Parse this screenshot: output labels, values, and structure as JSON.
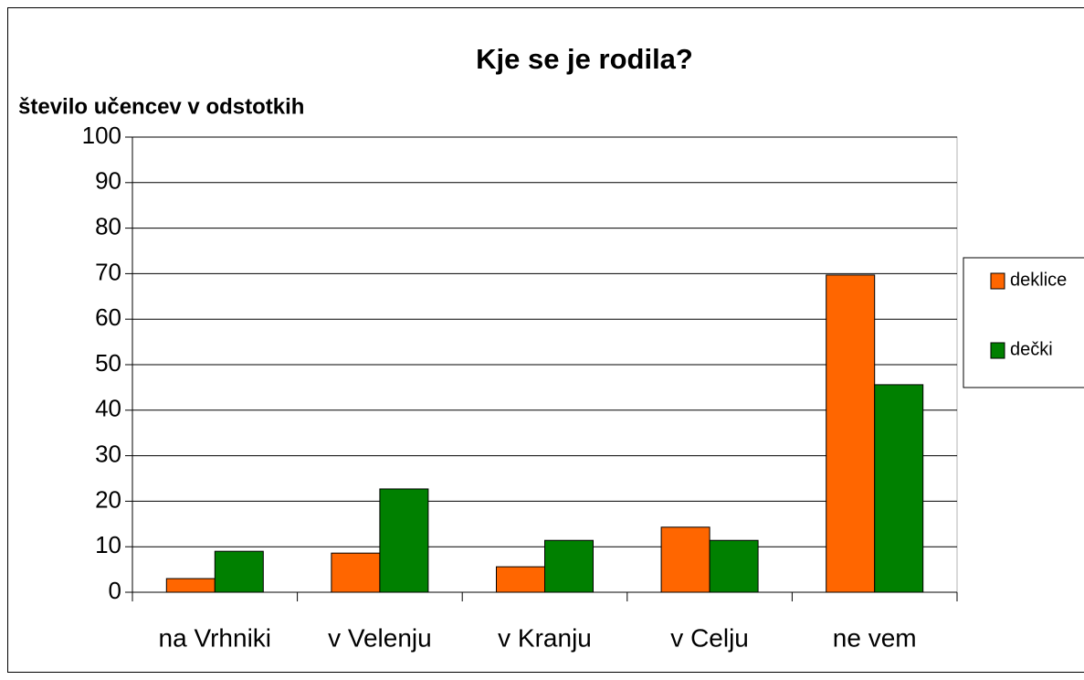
{
  "chart_data": {
    "type": "bar",
    "title": "Kje se je rodila?",
    "y_label": "število učencev v odstotkih",
    "categories": [
      "na Vrhniki",
      "v Velenju",
      "v Kranju",
      "v Celju",
      "ne vem"
    ],
    "series": [
      {
        "name": "deklice",
        "color": "#ff6600",
        "values": [
          3.0,
          8.6,
          5.6,
          14.3,
          69.7
        ]
      },
      {
        "name": "dečki",
        "color": "#008000",
        "values": [
          9.0,
          22.7,
          11.4,
          11.4,
          45.6
        ]
      }
    ],
    "ylim": [
      0,
      100
    ],
    "yticks": [
      0,
      10,
      20,
      30,
      40,
      50,
      60,
      70,
      80,
      90,
      100
    ],
    "grid": true,
    "legend": "right"
  }
}
